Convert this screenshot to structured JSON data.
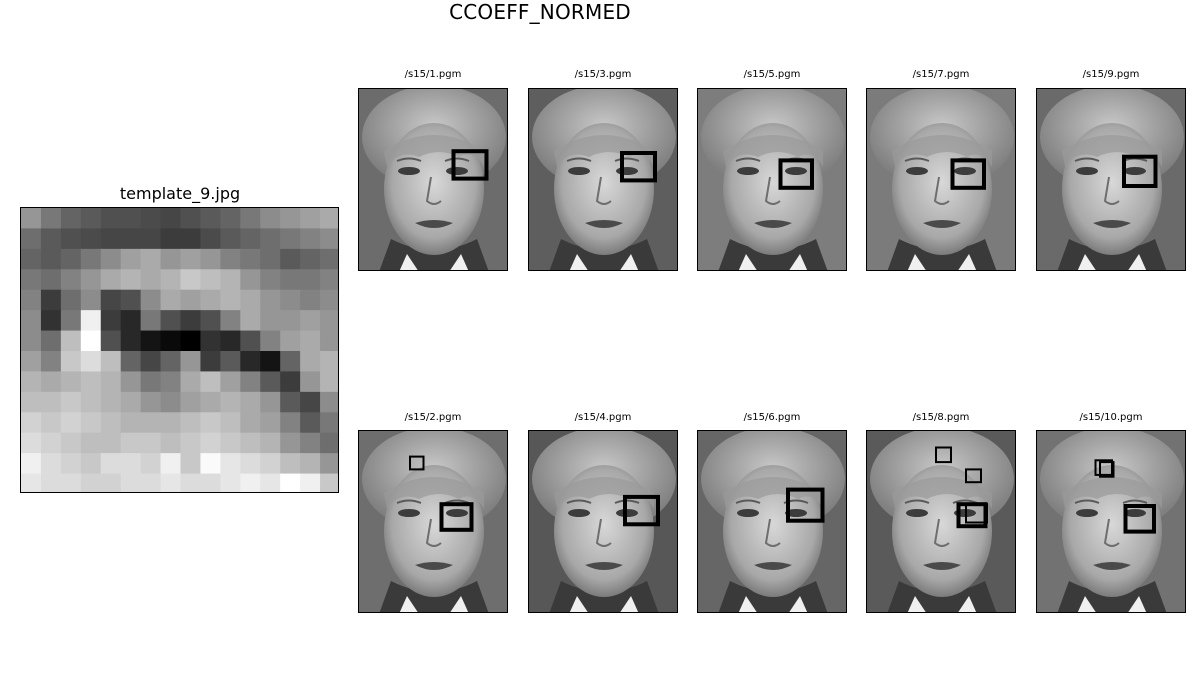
{
  "figure": {
    "suptitle": "CCOEFF_NORMED",
    "template": {
      "title": "template_9.jpg",
      "rows": 14,
      "cols": 16,
      "pixels": [
        [
          150,
          120,
          100,
          90,
          80,
          80,
          75,
          70,
          80,
          90,
          100,
          120,
          140,
          150,
          160,
          170
        ],
        [
          110,
          90,
          80,
          75,
          70,
          70,
          70,
          60,
          60,
          75,
          90,
          100,
          110,
          120,
          130,
          140
        ],
        [
          100,
          90,
          100,
          120,
          140,
          160,
          170,
          150,
          160,
          150,
          130,
          120,
          110,
          90,
          100,
          110
        ],
        [
          120,
          110,
          130,
          150,
          170,
          180,
          170,
          180,
          200,
          190,
          180,
          150,
          130,
          120,
          120,
          130
        ],
        [
          130,
          60,
          110,
          140,
          70,
          80,
          140,
          170,
          160,
          170,
          180,
          170,
          150,
          140,
          130,
          140
        ],
        [
          140,
          50,
          120,
          240,
          60,
          40,
          120,
          80,
          60,
          80,
          130,
          170,
          150,
          150,
          160,
          150
        ],
        [
          140,
          110,
          190,
          255,
          80,
          40,
          20,
          10,
          0,
          50,
          40,
          80,
          130,
          160,
          170,
          150
        ],
        [
          160,
          130,
          200,
          220,
          190,
          100,
          70,
          100,
          150,
          60,
          90,
          40,
          20,
          100,
          170,
          180
        ],
        [
          180,
          170,
          180,
          190,
          180,
          150,
          120,
          130,
          170,
          190,
          160,
          130,
          90,
          60,
          150,
          180
        ],
        [
          190,
          190,
          200,
          190,
          180,
          170,
          150,
          140,
          160,
          170,
          180,
          170,
          150,
          90,
          70,
          140
        ],
        [
          210,
          200,
          210,
          200,
          190,
          180,
          180,
          180,
          190,
          200,
          190,
          170,
          160,
          130,
          90,
          120
        ],
        [
          220,
          210,
          200,
          190,
          190,
          200,
          200,
          190,
          200,
          210,
          200,
          190,
          180,
          150,
          130,
          110
        ],
        [
          240,
          220,
          210,
          200,
          220,
          220,
          210,
          240,
          200,
          250,
          230,
          220,
          210,
          190,
          180,
          150
        ],
        [
          230,
          220,
          220,
          210,
          210,
          220,
          220,
          230,
          220,
          220,
          230,
          240,
          230,
          255,
          240,
          200
        ]
      ]
    },
    "thumbnails": [
      {
        "label": "/s15/1.pgm",
        "bg": "#6c6c6c",
        "boxes": [
          [
            0.63,
            0.34,
            0.22,
            0.15,
            4
          ]
        ]
      },
      {
        "label": "/s15/3.pgm",
        "bg": "#5e5e5e",
        "boxes": [
          [
            0.62,
            0.35,
            0.22,
            0.15,
            4
          ]
        ]
      },
      {
        "label": "/s15/5.pgm",
        "bg": "#7d7d7d",
        "boxes": [
          [
            0.55,
            0.39,
            0.21,
            0.15,
            4
          ]
        ]
      },
      {
        "label": "/s15/7.pgm",
        "bg": "#7b7b7b",
        "boxes": [
          [
            0.57,
            0.39,
            0.21,
            0.15,
            4
          ]
        ]
      },
      {
        "label": "/s15/9.pgm",
        "bg": "#6a6a6a",
        "boxes": [
          [
            0.58,
            0.37,
            0.21,
            0.16,
            4
          ]
        ]
      },
      {
        "label": "/s15/2.pgm",
        "bg": "#6e6e6e",
        "boxes": [
          [
            0.34,
            0.14,
            0.09,
            0.07,
            2
          ],
          [
            0.55,
            0.4,
            0.2,
            0.14,
            4
          ]
        ]
      },
      {
        "label": "/s15/4.pgm",
        "bg": "#575757",
        "boxes": [
          [
            0.64,
            0.36,
            0.22,
            0.15,
            4
          ]
        ]
      },
      {
        "label": "/s15/6.pgm",
        "bg": "#666666",
        "boxes": [
          [
            0.6,
            0.32,
            0.23,
            0.17,
            4
          ]
        ]
      },
      {
        "label": "/s15/8.pgm",
        "bg": "#5a5a5a",
        "boxes": [
          [
            0.46,
            0.09,
            0.1,
            0.08,
            2
          ],
          [
            0.66,
            0.21,
            0.1,
            0.07,
            2
          ],
          [
            0.61,
            0.4,
            0.18,
            0.12,
            4
          ],
          [
            0.66,
            0.4,
            0.14,
            0.1,
            2
          ]
        ]
      },
      {
        "label": "/s15/10.pgm",
        "bg": "#727272",
        "boxes": [
          [
            0.39,
            0.16,
            0.11,
            0.08,
            2
          ],
          [
            0.42,
            0.17,
            0.09,
            0.08,
            2
          ],
          [
            0.59,
            0.41,
            0.19,
            0.14,
            4
          ]
        ]
      }
    ]
  }
}
